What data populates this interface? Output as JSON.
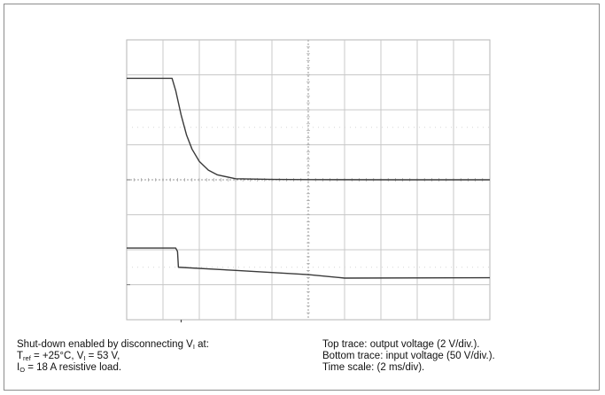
{
  "chart_data": {
    "type": "line",
    "time_scale_ms_per_div": 2,
    "divisions": {
      "x": 10,
      "y": 8
    },
    "x_range_ms": [
      0,
      20
    ],
    "series": [
      {
        "points": [
          [
            0,
            5.8
          ],
          [
            2.5,
            5.8
          ],
          [
            2.7,
            5.1
          ],
          [
            3.0,
            3.7
          ],
          [
            3.3,
            2.55
          ],
          [
            3.6,
            1.75
          ],
          [
            4.0,
            1.05
          ],
          [
            4.5,
            0.55
          ],
          [
            5.0,
            0.28
          ],
          [
            6.0,
            0.06
          ],
          [
            8.0,
            0.02
          ],
          [
            10.0,
            0.01
          ],
          [
            15.0,
            0.0
          ],
          [
            20.0,
            0.0
          ]
        ]
      },
      {
        "points": [
          [
            0,
            1.05
          ],
          [
            2.7,
            1.05
          ],
          [
            2.8,
            0.95
          ],
          [
            2.85,
            0.5
          ],
          [
            6.0,
            0.41
          ],
          [
            10.0,
            0.29
          ],
          [
            12.0,
            0.19
          ],
          [
            20.0,
            0.2
          ]
        ]
      }
    ]
  },
  "caption": {
    "left": {
      "line1": {
        "prefix": "Shut-down enabled by disconnecting V",
        "sub": "I",
        "suffix": " at:"
      },
      "line2": {
        "t": "T",
        "t_sub": "ref",
        "mid": " = +25°C, V",
        "v_sub": "I",
        "suffix": " = 53 V,"
      },
      "line3": {
        "i": "I",
        "i_sub": "O",
        "suffix": " = 18 A resistive load."
      }
    },
    "right": {
      "line1": "Top trace: output voltage (2 V/div.).",
      "line2": "Bottom trace: input voltage (50 V/div.).",
      "line3": "Time scale: (2 ms/div)."
    }
  }
}
